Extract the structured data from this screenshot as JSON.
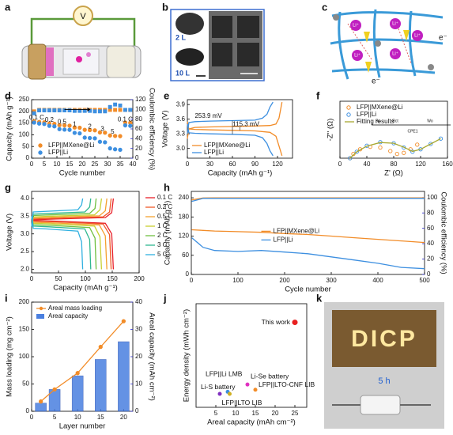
{
  "panel_labels": [
    "a",
    "b",
    "c",
    "d",
    "e",
    "f",
    "g",
    "h",
    "i",
    "j",
    "k"
  ],
  "schematics": {
    "a": {
      "meter": "V"
    },
    "b": {
      "scales": [
        "2 L",
        "10 L"
      ]
    },
    "c": {
      "ion": "Li⁺",
      "electron": "e⁻"
    },
    "k": {
      "photo_text": "DICP",
      "time": "5 h"
    }
  },
  "chart_data": [
    {
      "type": "line",
      "xlabel": "Cycle number",
      "ylabel": "Capacity (mAh g⁻¹)",
      "y2label": "Coulombic efficiency (%)",
      "x": [
        1,
        3,
        5,
        7,
        9,
        11,
        13,
        15,
        17,
        19,
        21,
        23,
        25,
        27,
        29,
        31,
        33,
        35,
        37,
        39
      ],
      "xlim": [
        0,
        40
      ],
      "xticks": [
        0,
        5,
        10,
        15,
        20,
        25,
        30,
        35,
        40
      ],
      "ylim": [
        0,
        250
      ],
      "yticks": [
        0,
        50,
        100,
        150,
        200,
        250
      ],
      "y2lim": [
        0,
        120
      ],
      "y2ticks": [
        0,
        20,
        40,
        60,
        80,
        100,
        120
      ],
      "y2color": "#2a2ad0",
      "legend": "lower left",
      "annotations": [
        "0.1 C",
        "0.2",
        "0.5",
        "1",
        "2",
        "3",
        "5",
        "0.1 C"
      ],
      "series": [
        {
          "name": "LFP||MXene@Li",
          "color": "#f28c28",
          "style": "markers",
          "marker": "circle",
          "values": [
            158,
            155,
            153,
            148,
            147,
            141,
            140,
            139,
            131,
            130,
            121,
            120,
            119,
            110,
            109,
            97,
            95,
            94,
            152,
            151
          ]
        },
        {
          "name": "LFP||Li",
          "color": "#3d8fe0",
          "style": "markers",
          "marker": "circle",
          "values": [
            152,
            148,
            146,
            138,
            136,
            124,
            122,
            121,
            108,
            106,
            88,
            86,
            85,
            70,
            68,
            42,
            38,
            36,
            140,
            138
          ]
        },
        {
          "color": "#f28c28",
          "style": "markers",
          "marker": "square",
          "axis": "y2",
          "values": [
            96,
            99,
            99,
            99,
            99,
            99,
            99,
            99,
            99,
            99,
            99,
            99,
            99,
            99,
            99,
            99,
            99,
            99,
            99,
            99
          ]
        },
        {
          "color": "#3d8fe0",
          "style": "markers",
          "marker": "square",
          "axis": "y2",
          "values": [
            92,
            98,
            98,
            98,
            98,
            98,
            98,
            98,
            97,
            97,
            97,
            97,
            96,
            96,
            96,
            105,
            110,
            108,
            99,
            99
          ]
        }
      ]
    },
    {
      "type": "line",
      "xlabel": "Capacity (mAh g⁻¹)",
      "ylabel": "Voltage (V)",
      "xlim": [
        0,
        140
      ],
      "xticks": [
        0,
        30,
        60,
        90,
        120
      ],
      "ylim": [
        2.8,
        4.0
      ],
      "yticks": [
        {
          "value": 3,
          "label": "3.0"
        },
        3.3,
        3.6,
        3.9
      ],
      "legend": "lower left",
      "annotations": [
        "253.9 mV",
        "115.3 mV"
      ],
      "series": [
        {
          "name": "LFP||MXene@Li",
          "color": "#f28c28",
          "style": "line",
          "x": [
            0,
            2,
            10,
            30,
            60,
            90,
            110,
            118,
            122,
            126
          ],
          "charge": [
            3.2,
            3.4,
            3.43,
            3.44,
            3.45,
            3.46,
            3.47,
            3.5,
            3.62,
            3.95
          ],
          "discharge": [
            3.55,
            3.4,
            3.39,
            3.38,
            3.37,
            3.36,
            3.33,
            3.25,
            3.05,
            2.85
          ]
        },
        {
          "name": "LFP||Li",
          "color": "#3d8fe0",
          "style": "line",
          "x": [
            0,
            2,
            10,
            30,
            60,
            90,
            100,
            106,
            110,
            114
          ],
          "charge": [
            3.3,
            3.53,
            3.55,
            3.56,
            3.57,
            3.58,
            3.62,
            3.7,
            3.85,
            3.95
          ],
          "discharge": [
            3.5,
            3.32,
            3.31,
            3.3,
            3.29,
            3.27,
            3.22,
            3.1,
            2.95,
            2.85
          ]
        }
      ]
    },
    {
      "type": "scatter",
      "xlabel": "Z' (Ω)",
      "ylabel": "-Z'' (Ω)",
      "xlim": [
        0,
        160
      ],
      "xticks": [
        0,
        40,
        80,
        120,
        160
      ],
      "ylim": [
        0,
        160
      ],
      "legend": "upper left",
      "circuit_labels": [
        "Rs",
        "Rct",
        "CPE1",
        "Wo"
      ],
      "series": [
        {
          "name": "LFP||MXene@Li",
          "color": "#f28c28",
          "style": "markers",
          "marker": "circle",
          "hollow": true,
          "x": [
            15,
            20,
            30,
            45,
            60,
            75,
            85,
            95,
            105,
            115
          ],
          "values": [
            0,
            12,
            25,
            32,
            30,
            20,
            12,
            15,
            25,
            38
          ]
        },
        {
          "name": "LFP||Li",
          "color": "#3d8fe0",
          "style": "markers",
          "marker": "circle",
          "hollow": true,
          "x": [
            15,
            25,
            40,
            60,
            80,
            95,
            108,
            120,
            135,
            150
          ],
          "values": [
            0,
            18,
            35,
            45,
            42,
            30,
            18,
            25,
            40,
            55
          ]
        },
        {
          "name": "Fitting results",
          "color": "#a8a830",
          "style": "line",
          "x": [
            15,
            25,
            40,
            60,
            80,
            95,
            108,
            120,
            135,
            150
          ],
          "values": [
            0,
            18,
            34,
            44,
            42,
            31,
            19,
            25,
            40,
            55
          ]
        }
      ]
    },
    {
      "type": "line",
      "xlabel": "Capacity (mAh g⁻¹)",
      "ylabel": "Voltage (V)",
      "xlim": [
        0,
        200
      ],
      "xticks": [
        0,
        50,
        100,
        150,
        200
      ],
      "ylim": [
        1.9,
        4.2
      ],
      "yticks": [
        {
          "value": 2,
          "label": "2.0"
        },
        2.5,
        {
          "value": 3,
          "label": "3.0"
        },
        3.5,
        {
          "value": 4,
          "label": "4.0"
        }
      ],
      "legend": "right",
      "series": [
        {
          "name": "0.1 C",
          "color": "#e8202a",
          "style": "line",
          "x": [
            0,
            3,
            46,
            137,
            149,
            152
          ],
          "charge": [
            3.2,
            3.4,
            3.42,
            3.46,
            3.6,
            4.0
          ],
          "discharge": [
            3.5,
            3.38,
            3.36,
            3.3,
            3.0,
            2.0
          ]
        },
        {
          "name": "0.2 C",
          "color": "#f05a28",
          "style": "line",
          "x": [
            0,
            3,
            44,
            133,
            145,
            148
          ],
          "charge": [
            3.2,
            3.42,
            3.44,
            3.48,
            3.62,
            4.0
          ],
          "discharge": [
            3.5,
            3.36,
            3.34,
            3.28,
            2.98,
            2.0
          ]
        },
        {
          "name": "0.5 C",
          "color": "#f5a030",
          "style": "line",
          "x": [
            0,
            3,
            42,
            126,
            137,
            140
          ],
          "charge": [
            3.2,
            3.45,
            3.47,
            3.51,
            3.65,
            4.0
          ],
          "discharge": [
            3.5,
            3.33,
            3.31,
            3.25,
            2.95,
            2.0
          ]
        },
        {
          "name": "1 C",
          "color": "#c8d030",
          "style": "line",
          "x": [
            0,
            3,
            39,
            117,
            127,
            130
          ],
          "charge": [
            3.2,
            3.48,
            3.5,
            3.54,
            3.68,
            4.0
          ],
          "discharge": [
            3.5,
            3.3,
            3.28,
            3.22,
            2.92,
            2.0
          ]
        },
        {
          "name": "2 C",
          "color": "#70c040",
          "style": "line",
          "x": [
            0,
            3,
            36,
            108,
            118,
            120
          ],
          "charge": [
            3.2,
            3.52,
            3.54,
            3.58,
            3.72,
            4.0
          ],
          "discharge": [
            3.5,
            3.26,
            3.24,
            3.18,
            2.88,
            2.0
          ]
        },
        {
          "name": "3 C",
          "color": "#30b890",
          "style": "line",
          "x": [
            0,
            3,
            33,
            99,
            108,
            110
          ],
          "charge": [
            3.2,
            3.56,
            3.58,
            3.62,
            3.76,
            4.0
          ],
          "discharge": [
            3.5,
            3.22,
            3.2,
            3.14,
            2.84,
            2.0
          ]
        },
        {
          "name": "5 C",
          "color": "#30b0e0",
          "style": "line",
          "x": [
            0,
            3,
            29,
            86,
            93,
            95
          ],
          "charge": [
            3.2,
            3.62,
            3.64,
            3.68,
            3.82,
            4.0
          ],
          "discharge": [
            3.5,
            3.16,
            3.14,
            3.08,
            2.78,
            2.0
          ]
        }
      ]
    },
    {
      "type": "line",
      "xlabel": "Cycle number",
      "ylabel": "Capacity (mAh g⁻¹)",
      "y2label": "Coulombic efficiency (%)",
      "x": [
        1,
        25,
        50,
        100,
        150,
        200,
        250,
        300,
        350,
        400,
        450,
        500
      ],
      "xlim": [
        0,
        500
      ],
      "xticks": [
        0,
        100,
        200,
        300,
        400,
        500
      ],
      "ylim": [
        0,
        260
      ],
      "yticks": [
        0,
        60,
        120,
        180,
        240
      ],
      "y2lim": [
        0,
        108
      ],
      "y2ticks": [
        0,
        20,
        40,
        60,
        80,
        100
      ],
      "y2color": "#2a2ad0",
      "legend": "center",
      "series": [
        {
          "name": "LFP||MXene@Li",
          "color": "#f28c28",
          "style": "line",
          "values": [
            140,
            138,
            136,
            134,
            132,
            128,
            125,
            120,
            115,
            110,
            105,
            100
          ]
        },
        {
          "name": "LFP||Li",
          "color": "#3d8fe0",
          "style": "line",
          "values": [
            115,
            85,
            75,
            72,
            75,
            70,
            65,
            55,
            45,
            35,
            22,
            18
          ]
        },
        {
          "color": "#f28c28",
          "style": "line",
          "axis": "y2",
          "values": [
            97,
            99.5,
            99.6,
            99.6,
            99.6,
            99.6,
            99.6,
            99.6,
            99.6,
            99.6,
            99.6,
            99.6
          ]
        },
        {
          "color": "#3d8fe0",
          "style": "line",
          "axis": "y2",
          "values": [
            95,
            99,
            99,
            99,
            99,
            99,
            99,
            99,
            99,
            99,
            99,
            99
          ]
        }
      ]
    },
    {
      "type": "line",
      "xlabel": "Layer number",
      "ylabel": "Mass loading (mg cm⁻²)",
      "y2label": "Areal capacity (mAh cm⁻²)",
      "x": [
        2,
        5,
        10,
        15,
        20
      ],
      "xlim": [
        0,
        22
      ],
      "xticks": [
        0,
        5,
        10,
        15,
        20
      ],
      "ylim": [
        0,
        200
      ],
      "yticks": [
        0,
        50,
        100,
        150,
        200
      ],
      "y2lim": [
        0,
        40
      ],
      "y2ticks": [
        0,
        10,
        20,
        30,
        40
      ],
      "y2color": "#2a2ad0",
      "legend": "upper left",
      "series": [
        {
          "name": "Areal mass loading",
          "color": "#f28c28",
          "style": "line+markers",
          "marker": "circle",
          "values": [
            18,
            40,
            70,
            118,
            165
          ]
        },
        {
          "name": "Areal capacity",
          "color": "#4a7fe0",
          "style": "bar",
          "axis": "y2",
          "values": [
            3,
            8,
            13,
            19,
            25.5
          ]
        }
      ]
    },
    {
      "type": "scatter",
      "xlabel": "Areal capacity (mAh cm⁻²)",
      "ylabel": "Energy density (mWh cm⁻²)",
      "xlim": [
        0,
        28
      ],
      "xticks": [
        5,
        10,
        15,
        20,
        25
      ],
      "ylim": [
        0,
        100
      ],
      "points": [
        {
          "name": "This work",
          "x": 25,
          "y": 82,
          "color": "#e82020"
        },
        {
          "name": "LFP||Li LMB",
          "x": 8,
          "y": 15,
          "color": "#3d8fe0"
        },
        {
          "name": "Li-Se battery",
          "x": 13,
          "y": 22,
          "color": "#e030c0"
        },
        {
          "name": "Li-S battery",
          "x": 6,
          "y": 13,
          "color": "#8030c0"
        },
        {
          "name": "LFP||LTO-CNF LIB",
          "x": 15,
          "y": 17,
          "color": "#f28c28"
        },
        {
          "name": "LFP||LTO LIB",
          "x": 8.5,
          "y": 13,
          "color": "#d0b020"
        }
      ]
    }
  ]
}
